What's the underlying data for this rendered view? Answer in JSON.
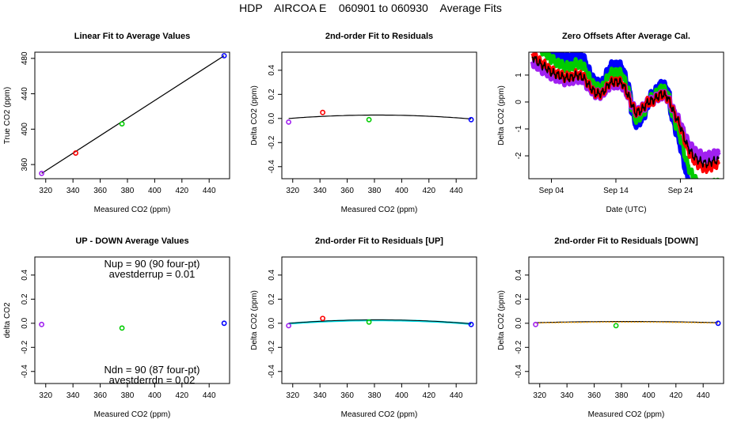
{
  "figure_title": "HDP    AIRCOA E    060901 to 060930    Average Fits",
  "chart_data": [
    {
      "id": "p1",
      "type": "scatter",
      "title": "Linear Fit to Average Values",
      "xlabel": "Measured CO2 (ppm)",
      "ylabel": "True CO2 (ppm)",
      "xlim": [
        312,
        455
      ],
      "ylim": [
        344,
        487
      ],
      "xticks": [
        320,
        340,
        360,
        380,
        400,
        420,
        440
      ],
      "yticks": [
        360,
        400,
        440,
        480
      ],
      "points": [
        {
          "x": 317,
          "y": 350,
          "color": "#a020f0"
        },
        {
          "x": 342,
          "y": 373,
          "color": "#ff0000"
        },
        {
          "x": 376,
          "y": 406,
          "color": "#00cc00"
        },
        {
          "x": 451,
          "y": 483,
          "color": "#0000ff"
        }
      ],
      "lines": [
        {
          "color": "#000000",
          "points": [
            [
              317,
              350
            ],
            [
              451,
              483
            ]
          ]
        }
      ]
    },
    {
      "id": "p2",
      "type": "scatter",
      "title": "2nd-order Fit to Residuals",
      "xlabel": "Measured CO2 (ppm)",
      "ylabel": "Delta CO2 (ppm)",
      "xlim": [
        312,
        455
      ],
      "ylim": [
        -0.5,
        0.55
      ],
      "xticks": [
        320,
        340,
        360,
        380,
        400,
        420,
        440
      ],
      "yticks": [
        -0.4,
        -0.2,
        0.0,
        0.2,
        0.4
      ],
      "points": [
        {
          "x": 317,
          "y": -0.03,
          "color": "#a020f0"
        },
        {
          "x": 342,
          "y": 0.05,
          "color": "#ff0000"
        },
        {
          "x": 376,
          "y": -0.01,
          "color": "#00cc00"
        },
        {
          "x": 451,
          "y": -0.01,
          "color": "#0000ff"
        }
      ],
      "lines": [
        {
          "color": "#000000",
          "curve": {
            "a": -6.7e-06,
            "b": 0.00512,
            "c": -0.95
          },
          "range": [
            317,
            451
          ]
        }
      ]
    },
    {
      "id": "p3",
      "type": "line",
      "title": "Zero Offsets After Average Cal.",
      "xlabel": "Date (UTC)",
      "ylabel": "Delta CO2 (ppm)",
      "xlim": [
        0.5,
        30.7
      ],
      "ylim": [
        -2.85,
        1.85
      ],
      "xticks": [
        {
          "v": 4,
          "label": "Sep 04"
        },
        {
          "v": 14,
          "label": "Sep 14"
        },
        {
          "v": 24,
          "label": "Sep 24"
        }
      ],
      "yticks": [
        -2,
        -1,
        0,
        1
      ],
      "series": [
        {
          "name": "blue",
          "color": "#0000ff",
          "offset": 0.18,
          "amp": 1.6,
          "width": 6
        },
        {
          "name": "green",
          "color": "#00cc00",
          "offset": 0.1,
          "amp": 1.35,
          "width": 5
        },
        {
          "name": "purple",
          "color": "#a020f0",
          "offset": 0.0,
          "amp": 0.9,
          "width": 6
        },
        {
          "name": "red",
          "color": "#ff0000",
          "offset": -0.05,
          "amp": 1.1,
          "width": 4
        },
        {
          "name": "black",
          "color": "#000000",
          "offset": 0.0,
          "amp": 1.0,
          "width": 1.5
        }
      ],
      "base": [
        [
          1,
          1.7
        ],
        [
          2,
          1.45
        ],
        [
          3,
          1.3
        ],
        [
          4,
          1.1
        ],
        [
          5,
          1.0
        ],
        [
          6,
          0.9
        ],
        [
          7,
          0.9
        ],
        [
          8,
          1.0
        ],
        [
          9,
          0.9
        ],
        [
          10,
          0.55
        ],
        [
          11,
          0.3
        ],
        [
          12,
          0.35
        ],
        [
          13,
          0.7
        ],
        [
          14,
          0.75
        ],
        [
          15,
          0.7
        ],
        [
          16,
          0.2
        ],
        [
          17,
          -0.4
        ],
        [
          18,
          -0.3
        ],
        [
          19,
          0.0
        ],
        [
          20,
          0.1
        ],
        [
          21,
          0.3
        ],
        [
          22,
          0.2
        ],
        [
          23,
          -0.4
        ],
        [
          24,
          -0.9
        ],
        [
          25,
          -1.6
        ],
        [
          26,
          -2.0
        ],
        [
          27,
          -2.2
        ],
        [
          28,
          -2.3
        ],
        [
          29,
          -2.2
        ],
        [
          30,
          -2.15
        ]
      ]
    },
    {
      "id": "p4",
      "type": "scatter",
      "title": "UP - DOWN Average Values",
      "xlabel": "Measured CO2 (ppm)",
      "ylabel": "delta CO2",
      "xlim": [
        312,
        455
      ],
      "ylim": [
        -0.5,
        0.55
      ],
      "xticks": [
        320,
        340,
        360,
        380,
        400,
        420,
        440
      ],
      "yticks": [
        -0.4,
        -0.2,
        0.0,
        0.2,
        0.4
      ],
      "points": [
        {
          "x": 317,
          "y": -0.01,
          "color": "#a020f0"
        },
        {
          "x": 376,
          "y": -0.04,
          "color": "#00cc00"
        },
        {
          "x": 451,
          "y": 0.0,
          "color": "#0000ff"
        }
      ],
      "lines": [],
      "annotations": [
        "Nup = 90 (90 four-pt)",
        "avestderrup =  0.01",
        "Ndn = 90 (87 four-pt)",
        "avestderrdn =  0.02"
      ]
    },
    {
      "id": "p5",
      "type": "scatter",
      "title": "2nd-order Fit to Residuals [UP]",
      "xlabel": "Measured CO2 (ppm)",
      "ylabel": "Delta CO2 (ppm)",
      "xlim": [
        312,
        455
      ],
      "ylim": [
        -0.5,
        0.55
      ],
      "xticks": [
        320,
        340,
        360,
        380,
        400,
        420,
        440
      ],
      "yticks": [
        -0.4,
        -0.2,
        0.0,
        0.2,
        0.4
      ],
      "points": [
        {
          "x": 317,
          "y": -0.02,
          "color": "#a020f0"
        },
        {
          "x": 342,
          "y": 0.04,
          "color": "#ff0000"
        },
        {
          "x": 376,
          "y": 0.01,
          "color": "#00cc00"
        },
        {
          "x": 451,
          "y": -0.01,
          "color": "#0000ff"
        }
      ],
      "lines": [
        {
          "color": "#00e5ee",
          "width": 2.5,
          "curve": {
            "a": -6.5e-06,
            "b": 0.00497,
            "c": -0.925
          },
          "range": [
            317,
            451
          ]
        },
        {
          "color": "#000000",
          "width": 1,
          "curve": {
            "a": -6.7e-06,
            "b": 0.00512,
            "c": -0.95
          },
          "range": [
            317,
            451
          ]
        }
      ]
    },
    {
      "id": "p6",
      "type": "scatter",
      "title": "2nd-order Fit to Residuals [DOWN]",
      "xlabel": "Measured CO2 (ppm)",
      "ylabel": "Delta CO2 (ppm)",
      "xlim": [
        312,
        455
      ],
      "ylim": [
        -0.5,
        0.55
      ],
      "xticks": [
        320,
        340,
        360,
        380,
        400,
        420,
        440
      ],
      "yticks": [
        -0.4,
        -0.2,
        0.0,
        0.2,
        0.4
      ],
      "points": [
        {
          "x": 317,
          "y": -0.01,
          "color": "#a020f0"
        },
        {
          "x": 376,
          "y": -0.02,
          "color": "#00cc00"
        },
        {
          "x": 451,
          "y": 0.0,
          "color": "#0000ff"
        }
      ],
      "lines": [
        {
          "color": "#000000",
          "width": 1.2,
          "curve": {
            "a": -2.2e-06,
            "b": 0.00169,
            "c": -0.31
          },
          "range": [
            317,
            451
          ]
        },
        {
          "color": "#ffa500",
          "width": 1.5,
          "dash": "2,2",
          "curve": {
            "a": -1.8e-06,
            "b": 0.00138,
            "c": -0.255
          },
          "range": [
            317,
            451
          ]
        }
      ]
    }
  ]
}
